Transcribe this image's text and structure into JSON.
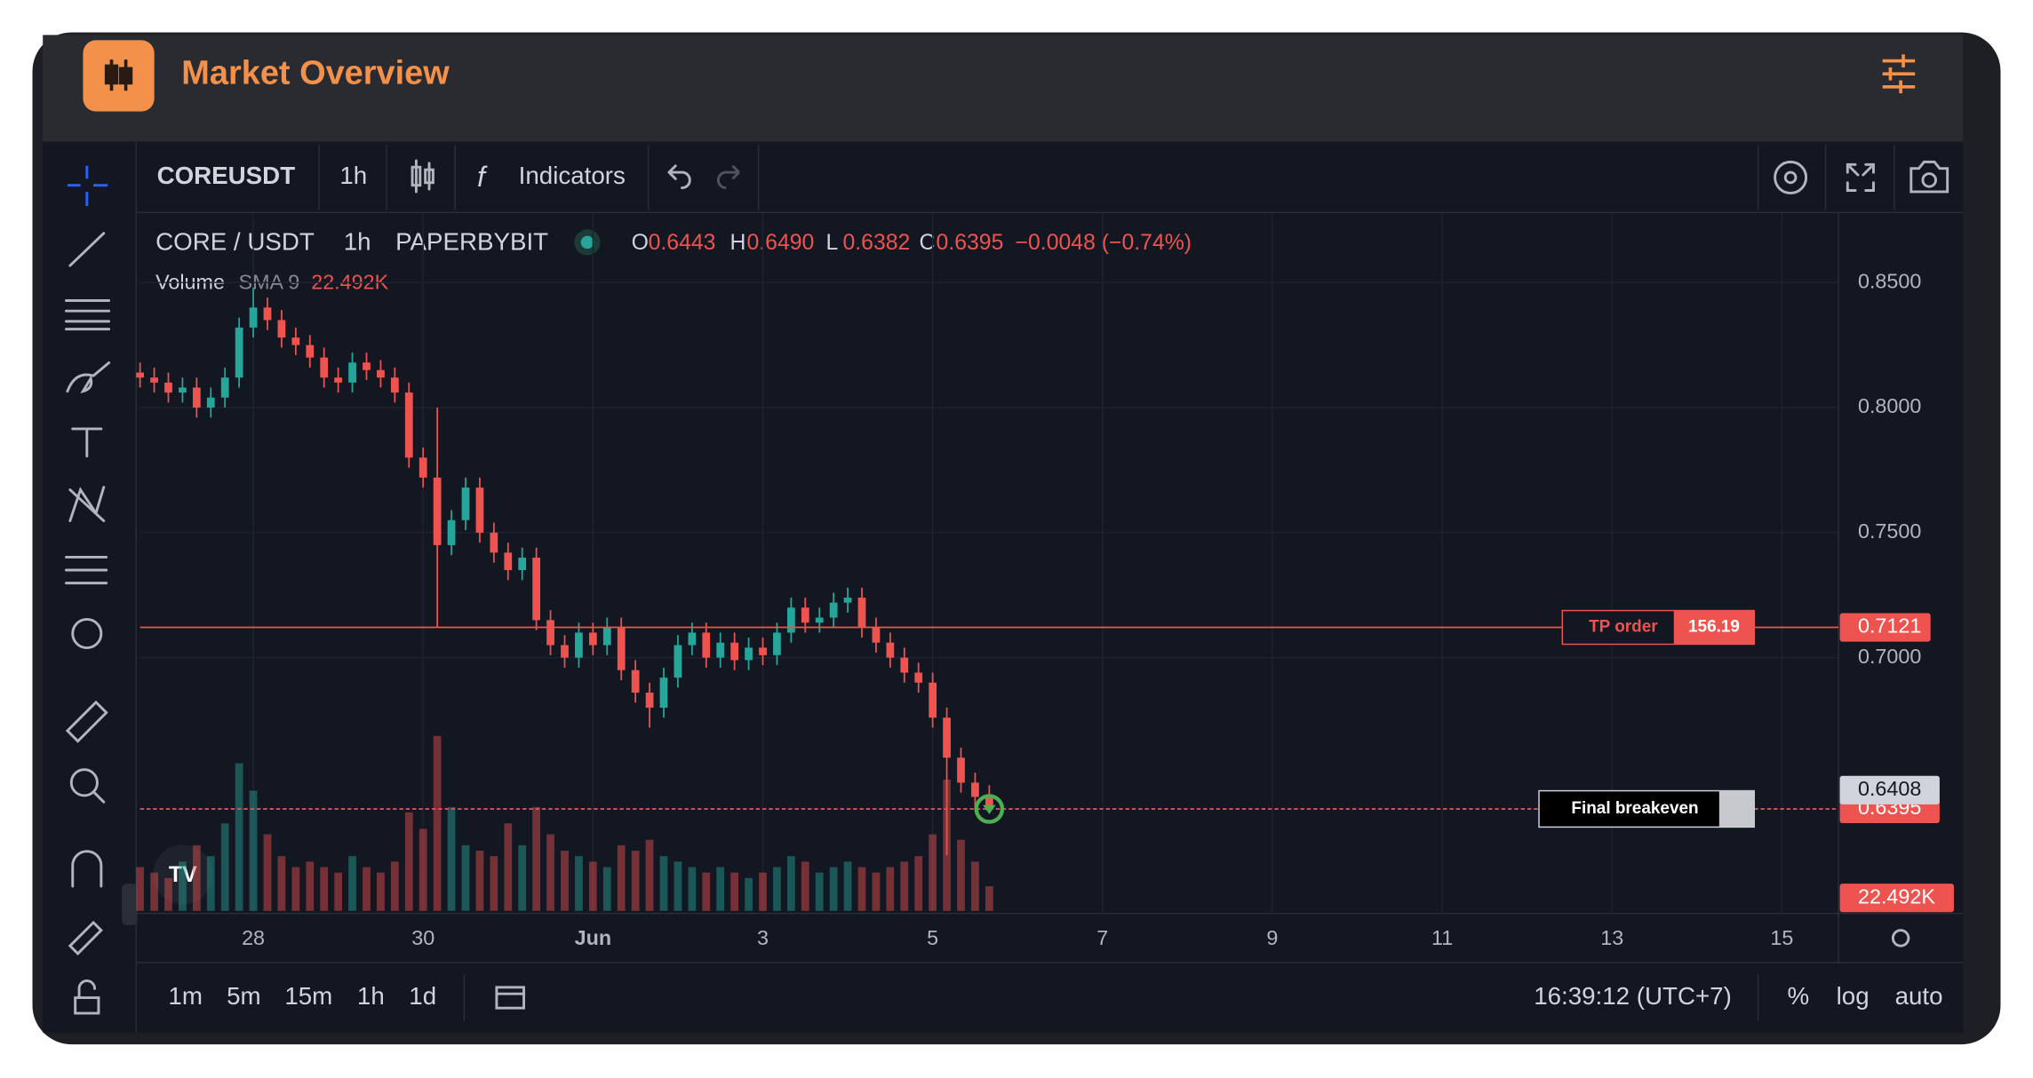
{
  "header": {
    "title": "Market Overview"
  },
  "toolbar": {
    "symbol": "COREUSDT",
    "interval": "1h",
    "indicators": "Indicators"
  },
  "legend": {
    "symbol": "CORE / USDT",
    "interval": "1h",
    "exchange": "PAPERBYBIT",
    "ohlc": [
      {
        "label": "O",
        "value": "0.6443"
      },
      {
        "label": "H",
        "value": "0.6490"
      },
      {
        "label": "L",
        "value": "0.6382"
      },
      {
        "label": "C",
        "value": "0.6395"
      }
    ],
    "change": "−0.0048 (−0.74%)",
    "volume_label": "Volume",
    "volume_indicator": "SMA 9",
    "volume_value": "22.492K"
  },
  "chart_data": {
    "type": "candlestick",
    "x": [
      0,
      1,
      2,
      3,
      4,
      5,
      6,
      7,
      8,
      9,
      10,
      11,
      12,
      13,
      14,
      15,
      16,
      17,
      18,
      19,
      20,
      21,
      22,
      23,
      24,
      25,
      26,
      27,
      28,
      29,
      30,
      31,
      32,
      33,
      34,
      35,
      36,
      37,
      38,
      39,
      40,
      41,
      42,
      43,
      44,
      45,
      46,
      47,
      48,
      49,
      50,
      51,
      52,
      53,
      54,
      55,
      56,
      57,
      58,
      59,
      60
    ],
    "open": [
      0.814,
      0.812,
      0.81,
      0.806,
      0.808,
      0.8,
      0.804,
      0.812,
      0.832,
      0.84,
      0.835,
      0.828,
      0.825,
      0.82,
      0.812,
      0.81,
      0.818,
      0.815,
      0.812,
      0.806,
      0.78,
      0.772,
      0.745,
      0.755,
      0.768,
      0.75,
      0.742,
      0.735,
      0.74,
      0.715,
      0.705,
      0.7,
      0.71,
      0.705,
      0.712,
      0.695,
      0.686,
      0.68,
      0.692,
      0.705,
      0.71,
      0.7,
      0.706,
      0.699,
      0.704,
      0.701,
      0.71,
      0.72,
      0.714,
      0.716,
      0.722,
      0.724,
      0.712,
      0.706,
      0.7,
      0.694,
      0.69,
      0.676,
      0.66,
      0.65,
      0.6443
    ],
    "high": [
      0.818,
      0.816,
      0.814,
      0.812,
      0.812,
      0.808,
      0.816,
      0.836,
      0.848,
      0.844,
      0.839,
      0.832,
      0.829,
      0.824,
      0.816,
      0.822,
      0.822,
      0.819,
      0.816,
      0.81,
      0.784,
      0.8,
      0.759,
      0.772,
      0.772,
      0.754,
      0.746,
      0.744,
      0.744,
      0.719,
      0.709,
      0.714,
      0.714,
      0.716,
      0.716,
      0.699,
      0.69,
      0.696,
      0.709,
      0.714,
      0.714,
      0.71,
      0.71,
      0.708,
      0.708,
      0.714,
      0.724,
      0.724,
      0.72,
      0.726,
      0.728,
      0.728,
      0.716,
      0.71,
      0.704,
      0.698,
      0.694,
      0.68,
      0.664,
      0.654,
      0.649
    ],
    "low": [
      0.808,
      0.806,
      0.802,
      0.802,
      0.796,
      0.796,
      0.8,
      0.808,
      0.828,
      0.831,
      0.824,
      0.821,
      0.816,
      0.808,
      0.806,
      0.806,
      0.811,
      0.808,
      0.802,
      0.776,
      0.768,
      0.712,
      0.741,
      0.751,
      0.746,
      0.738,
      0.731,
      0.731,
      0.711,
      0.701,
      0.696,
      0.696,
      0.701,
      0.701,
      0.691,
      0.682,
      0.672,
      0.676,
      0.688,
      0.701,
      0.696,
      0.696,
      0.695,
      0.695,
      0.697,
      0.697,
      0.706,
      0.71,
      0.71,
      0.712,
      0.718,
      0.708,
      0.702,
      0.696,
      0.69,
      0.686,
      0.672,
      0.621,
      0.646,
      0.64,
      0.6382
    ],
    "close": [
      0.812,
      0.81,
      0.806,
      0.808,
      0.8,
      0.804,
      0.812,
      0.832,
      0.84,
      0.835,
      0.828,
      0.825,
      0.82,
      0.812,
      0.81,
      0.818,
      0.815,
      0.812,
      0.806,
      0.78,
      0.772,
      0.745,
      0.755,
      0.768,
      0.75,
      0.742,
      0.735,
      0.74,
      0.715,
      0.705,
      0.7,
      0.71,
      0.705,
      0.712,
      0.695,
      0.686,
      0.68,
      0.692,
      0.705,
      0.71,
      0.7,
      0.706,
      0.699,
      0.704,
      0.701,
      0.71,
      0.72,
      0.714,
      0.716,
      0.722,
      0.724,
      0.712,
      0.706,
      0.7,
      0.694,
      0.69,
      0.676,
      0.66,
      0.65,
      0.6443,
      0.6395
    ],
    "volume": [
      40000,
      35000,
      30000,
      45000,
      60000,
      50000,
      80000,
      135000,
      110000,
      70000,
      50000,
      40000,
      45000,
      40000,
      35000,
      50000,
      40000,
      35000,
      45000,
      90000,
      75000,
      160000,
      95000,
      60000,
      55000,
      50000,
      80000,
      60000,
      95000,
      70000,
      55000,
      50000,
      45000,
      40000,
      60000,
      55000,
      65000,
      50000,
      45000,
      40000,
      35000,
      40000,
      35000,
      30000,
      35000,
      40000,
      50000,
      45000,
      35000,
      40000,
      45000,
      40000,
      35000,
      40000,
      45000,
      50000,
      70000,
      120000,
      65000,
      45000,
      22492
    ],
    "volume_label": {
      "value": 22492,
      "label": "22.492K"
    },
    "up_color": "#26a69a",
    "down_color": "#ef5350",
    "xlim": [
      0,
      120
    ],
    "xticks": [
      {
        "value": 8,
        "label": "28"
      },
      {
        "value": 20,
        "label": "30"
      },
      {
        "value": 32,
        "label": "Jun"
      },
      {
        "value": 44,
        "label": "3"
      },
      {
        "value": 56,
        "label": "5"
      },
      {
        "value": 68,
        "label": "7"
      },
      {
        "value": 80,
        "label": "9"
      },
      {
        "value": 92,
        "label": "11"
      },
      {
        "value": 104,
        "label": "13"
      },
      {
        "value": 116,
        "label": "15"
      }
    ],
    "ylim": [
      0.5977,
      0.8775
    ],
    "yticks": [
      {
        "value": 0.85,
        "label": "0.8500"
      },
      {
        "value": 0.8,
        "label": "0.8000"
      },
      {
        "value": 0.75,
        "label": "0.7500"
      },
      {
        "value": 0.7,
        "label": "0.7000"
      }
    ],
    "grid": true,
    "price_lines": [
      {
        "name": "TP order",
        "value": 0.7121,
        "quantity": 156.19,
        "color": "#ef5350"
      },
      {
        "name": "Final breakeven",
        "value": 0.6395,
        "color": "#ef5350"
      }
    ],
    "price_label": 0.6408
  },
  "bottom_bar": {
    "intervals": [
      "1m",
      "5m",
      "15m",
      "1h",
      "1d"
    ],
    "time": "16:39:12 (UTC+7)",
    "options": [
      "%",
      "log",
      "auto"
    ]
  }
}
